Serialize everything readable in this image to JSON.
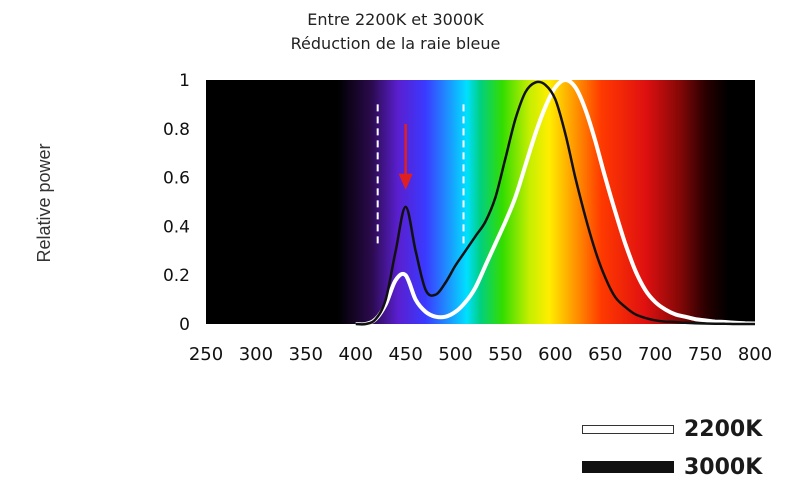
{
  "chart_data": {
    "type": "line",
    "title": "Entre 2200K et 3000K",
    "subtitle": "Réduction de la raie bleue",
    "ylabel": "Relative power",
    "xlabel": "",
    "xlim": [
      250,
      800
    ],
    "ylim": [
      0,
      1
    ],
    "x_ticks": [
      "250",
      "300",
      "350",
      "400",
      "450",
      "500",
      "550",
      "600",
      "650",
      "700",
      "750",
      "800"
    ],
    "y_ticks": [
      "0",
      "0.2",
      "0.4",
      "0.6",
      "0.8",
      "1"
    ],
    "legend_placement": "bottom-right",
    "grid": false,
    "series": [
      {
        "name": "2200K",
        "color": "#ffffff",
        "x": [
          400,
          410,
          420,
          430,
          440,
          450,
          460,
          470,
          480,
          490,
          500,
          510,
          520,
          530,
          540,
          550,
          560,
          570,
          580,
          590,
          600,
          610,
          620,
          630,
          640,
          650,
          660,
          670,
          680,
          690,
          700,
          710,
          720,
          730,
          740,
          750,
          760,
          770,
          780,
          790,
          800
        ],
        "y": [
          0.0,
          0.0,
          0.02,
          0.08,
          0.18,
          0.2,
          0.1,
          0.05,
          0.03,
          0.03,
          0.05,
          0.09,
          0.15,
          0.24,
          0.33,
          0.42,
          0.52,
          0.65,
          0.78,
          0.89,
          0.97,
          1.0,
          0.97,
          0.88,
          0.75,
          0.6,
          0.46,
          0.33,
          0.22,
          0.14,
          0.09,
          0.06,
          0.04,
          0.03,
          0.02,
          0.015,
          0.01,
          0.008,
          0.005,
          0.003,
          0.002
        ]
      },
      {
        "name": "3000K",
        "color": "#111111",
        "x": [
          400,
          410,
          420,
          430,
          440,
          450,
          460,
          470,
          480,
          490,
          500,
          510,
          520,
          530,
          540,
          550,
          560,
          570,
          580,
          590,
          600,
          610,
          620,
          630,
          640,
          650,
          660,
          670,
          680,
          690,
          700,
          710,
          720,
          730,
          740,
          750,
          760,
          770,
          780,
          790,
          800
        ],
        "y": [
          0.0,
          0.0,
          0.02,
          0.1,
          0.3,
          0.48,
          0.3,
          0.14,
          0.12,
          0.17,
          0.24,
          0.3,
          0.36,
          0.42,
          0.52,
          0.68,
          0.84,
          0.95,
          0.99,
          0.98,
          0.92,
          0.78,
          0.6,
          0.44,
          0.3,
          0.19,
          0.11,
          0.07,
          0.04,
          0.025,
          0.015,
          0.01,
          0.008,
          0.005,
          0.003,
          0.002,
          0.001,
          0.001,
          0.0,
          0.0,
          0.0
        ]
      }
    ],
    "annotations": [
      {
        "type": "dashed-vline",
        "x": 422,
        "y_top": 0.9,
        "color": "#ffffff"
      },
      {
        "type": "dashed-vline",
        "x": 508,
        "y_top": 0.9,
        "color": "#ffffff"
      },
      {
        "type": "arrow",
        "x": 450,
        "y_from": 0.82,
        "y_to": 0.55,
        "color": "#e02020"
      }
    ]
  }
}
